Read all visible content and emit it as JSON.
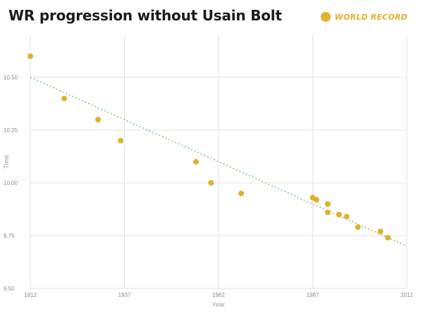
{
  "title": "WR progression without Usain Bolt",
  "legend": {
    "label": "WORLD RECORD",
    "color": "#e0b12c"
  },
  "chart_data": {
    "type": "scatter",
    "xlabel": "Year",
    "ylabel": "Time",
    "xlim": [
      1912,
      2012
    ],
    "ylim": [
      9.5,
      10.7
    ],
    "x_ticks": [
      1912,
      1937,
      1962,
      1987,
      2012
    ],
    "y_ticks": [
      "9.50",
      "9.75",
      "10.00",
      "10.25",
      "10.50"
    ],
    "grid": true,
    "series": [
      {
        "name": "WORLD RECORD",
        "color": "#e0b12c",
        "points": [
          {
            "x": 1912,
            "y": 10.6
          },
          {
            "x": 1921,
            "y": 10.4
          },
          {
            "x": 1930,
            "y": 10.3
          },
          {
            "x": 1936,
            "y": 10.2
          },
          {
            "x": 1956,
            "y": 10.1
          },
          {
            "x": 1960,
            "y": 10.0
          },
          {
            "x": 1968,
            "y": 9.95
          },
          {
            "x": 1987,
            "y": 9.93
          },
          {
            "x": 1988,
            "y": 9.92
          },
          {
            "x": 1991,
            "y": 9.9
          },
          {
            "x": 1991,
            "y": 9.86
          },
          {
            "x": 1994,
            "y": 9.85
          },
          {
            "x": 1996,
            "y": 9.84
          },
          {
            "x": 1999,
            "y": 9.79
          },
          {
            "x": 2005,
            "y": 9.77
          },
          {
            "x": 2007,
            "y": 9.74
          }
        ]
      }
    ],
    "trendline": {
      "style": "dotted",
      "color": "#5cb85c",
      "points": [
        {
          "x": 1912,
          "y": 10.5
        },
        {
          "x": 2012,
          "y": 9.7
        }
      ]
    }
  }
}
